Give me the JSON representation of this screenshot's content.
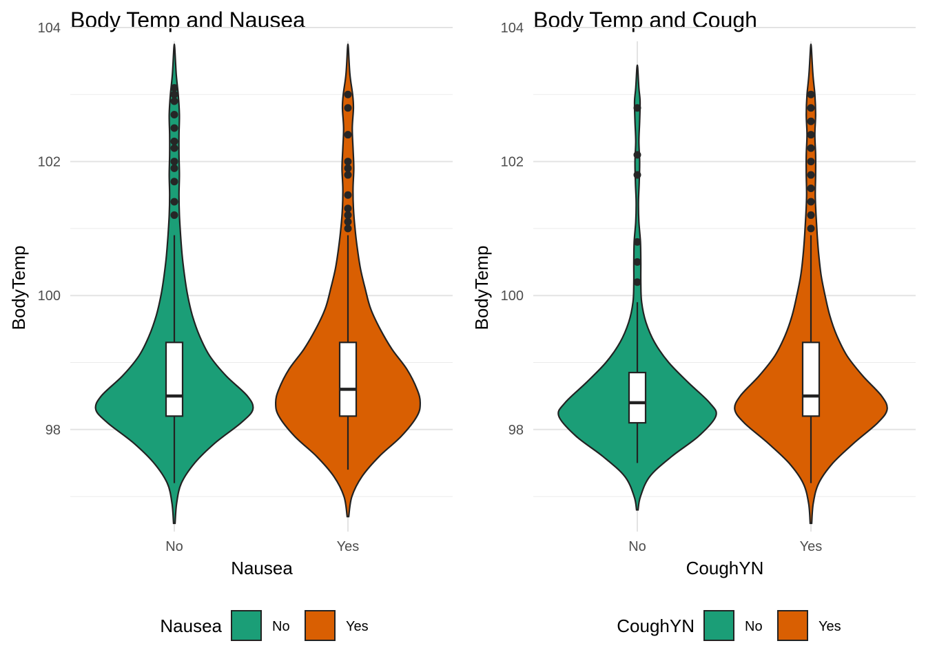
{
  "chart_data": [
    {
      "type": "violin",
      "title": "Body Temp and Nausea",
      "xlabel": "Nausea",
      "ylabel": "BodyTemp",
      "categories": [
        "No",
        "Yes"
      ],
      "ylim": [
        96.6,
        104.0
      ],
      "yticks": [
        98,
        100,
        102,
        104
      ],
      "grid": true,
      "legend": {
        "title": "Nausea",
        "position": "bottom",
        "entries": [
          "No",
          "Yes"
        ]
      },
      "colors": {
        "No": "#1b9e77",
        "Yes": "#d95f02"
      },
      "series": [
        {
          "category": "No",
          "range": [
            96.6,
            103.7
          ],
          "box": {
            "q1": 98.2,
            "median": 98.5,
            "q3": 99.3,
            "whisker_low": 97.2,
            "whisker_high": 100.9
          },
          "outliers": [
            101.2,
            101.4,
            101.7,
            101.9,
            102.0,
            102.2,
            102.3,
            102.5,
            102.7,
            102.9,
            103.0,
            103.1
          ],
          "density": [
            [
              96.6,
              0.01
            ],
            [
              96.9,
              0.03
            ],
            [
              97.2,
              0.09
            ],
            [
              97.5,
              0.26
            ],
            [
              97.8,
              0.52
            ],
            [
              98.1,
              0.85
            ],
            [
              98.3,
              1.0
            ],
            [
              98.5,
              0.93
            ],
            [
              98.8,
              0.66
            ],
            [
              99.1,
              0.45
            ],
            [
              99.4,
              0.32
            ],
            [
              99.7,
              0.23
            ],
            [
              100.0,
              0.17
            ],
            [
              100.3,
              0.13
            ],
            [
              100.6,
              0.1
            ],
            [
              100.9,
              0.08
            ],
            [
              101.2,
              0.065
            ],
            [
              101.5,
              0.06
            ],
            [
              101.8,
              0.065
            ],
            [
              102.1,
              0.06
            ],
            [
              102.4,
              0.06
            ],
            [
              102.7,
              0.065
            ],
            [
              103.0,
              0.05
            ],
            [
              103.3,
              0.025
            ],
            [
              103.7,
              0.005
            ]
          ]
        },
        {
          "category": "Yes",
          "range": [
            96.7,
            103.7
          ],
          "box": {
            "q1": 98.2,
            "median": 98.6,
            "q3": 99.3,
            "whisker_low": 97.4,
            "whisker_high": 100.9
          },
          "outliers": [
            101.0,
            101.1,
            101.2,
            101.3,
            101.5,
            101.8,
            101.9,
            102.0,
            102.4,
            102.8,
            103.0
          ],
          "density": [
            [
              96.7,
              0.01
            ],
            [
              97.0,
              0.05
            ],
            [
              97.3,
              0.18
            ],
            [
              97.6,
              0.4
            ],
            [
              97.9,
              0.68
            ],
            [
              98.2,
              0.88
            ],
            [
              98.4,
              0.92
            ],
            [
              98.6,
              0.88
            ],
            [
              98.9,
              0.75
            ],
            [
              99.2,
              0.56
            ],
            [
              99.5,
              0.41
            ],
            [
              99.8,
              0.29
            ],
            [
              100.1,
              0.22
            ],
            [
              100.4,
              0.16
            ],
            [
              100.7,
              0.12
            ],
            [
              101.0,
              0.09
            ],
            [
              101.3,
              0.07
            ],
            [
              101.6,
              0.065
            ],
            [
              101.9,
              0.075
            ],
            [
              102.2,
              0.065
            ],
            [
              102.5,
              0.055
            ],
            [
              102.8,
              0.07
            ],
            [
              103.0,
              0.06
            ],
            [
              103.3,
              0.025
            ],
            [
              103.7,
              0.005
            ]
          ]
        }
      ]
    },
    {
      "type": "violin",
      "title": "Body Temp and Cough",
      "xlabel": "CoughYN",
      "ylabel": "BodyTemp",
      "categories": [
        "No",
        "Yes"
      ],
      "ylim": [
        96.6,
        104.0
      ],
      "yticks": [
        98,
        100,
        102,
        104
      ],
      "grid": true,
      "legend": {
        "title": "CoughYN",
        "position": "bottom",
        "entries": [
          "No",
          "Yes"
        ]
      },
      "colors": {
        "No": "#1b9e77",
        "Yes": "#d95f02"
      },
      "series": [
        {
          "category": "No",
          "range": [
            96.8,
            103.4
          ],
          "box": {
            "q1": 98.1,
            "median": 98.4,
            "q3": 98.85,
            "whisker_low": 97.5,
            "whisker_high": 99.9
          },
          "outliers": [
            100.2,
            100.5,
            100.8,
            101.8,
            102.1,
            102.8
          ],
          "density": [
            [
              96.8,
              0.01
            ],
            [
              97.0,
              0.04
            ],
            [
              97.3,
              0.16
            ],
            [
              97.6,
              0.44
            ],
            [
              97.9,
              0.78
            ],
            [
              98.2,
              1.0
            ],
            [
              98.4,
              0.92
            ],
            [
              98.7,
              0.65
            ],
            [
              99.0,
              0.4
            ],
            [
              99.3,
              0.22
            ],
            [
              99.6,
              0.11
            ],
            [
              99.9,
              0.055
            ],
            [
              100.2,
              0.045
            ],
            [
              100.5,
              0.045
            ],
            [
              100.8,
              0.04
            ],
            [
              101.1,
              0.02
            ],
            [
              101.4,
              0.015
            ],
            [
              101.7,
              0.025
            ],
            [
              102.0,
              0.03
            ],
            [
              102.3,
              0.02
            ],
            [
              102.6,
              0.03
            ],
            [
              102.9,
              0.035
            ],
            [
              103.1,
              0.02
            ],
            [
              103.4,
              0.005
            ]
          ]
        },
        {
          "category": "Yes",
          "range": [
            96.6,
            103.7
          ],
          "box": {
            "q1": 98.2,
            "median": 98.5,
            "q3": 99.3,
            "whisker_low": 97.2,
            "whisker_high": 100.9
          },
          "outliers": [
            101.0,
            101.2,
            101.4,
            101.6,
            101.8,
            102.0,
            102.2,
            102.4,
            102.6,
            102.8,
            103.0
          ],
          "density": [
            [
              96.6,
              0.01
            ],
            [
              96.9,
              0.03
            ],
            [
              97.2,
              0.1
            ],
            [
              97.5,
              0.28
            ],
            [
              97.8,
              0.55
            ],
            [
              98.1,
              0.85
            ],
            [
              98.3,
              0.97
            ],
            [
              98.5,
              0.9
            ],
            [
              98.8,
              0.66
            ],
            [
              99.1,
              0.46
            ],
            [
              99.4,
              0.33
            ],
            [
              99.7,
              0.24
            ],
            [
              100.0,
              0.18
            ],
            [
              100.3,
              0.13
            ],
            [
              100.6,
              0.1
            ],
            [
              100.9,
              0.08
            ],
            [
              101.2,
              0.065
            ],
            [
              101.5,
              0.055
            ],
            [
              101.8,
              0.06
            ],
            [
              102.1,
              0.06
            ],
            [
              102.4,
              0.05
            ],
            [
              102.7,
              0.06
            ],
            [
              103.0,
              0.05
            ],
            [
              103.3,
              0.025
            ],
            [
              103.7,
              0.005
            ]
          ]
        }
      ]
    }
  ]
}
